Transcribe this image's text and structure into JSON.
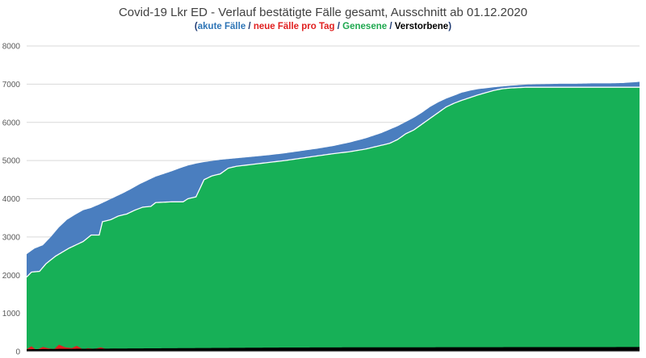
{
  "chart_data": {
    "type": "area",
    "title": "Covid-19 Lkr ED - Verlauf bestätigte Fälle gesamt, Ausschnitt ab 01.12.2020",
    "subtitle": {
      "open": "(",
      "close": ")",
      "separator": " / ",
      "parts": [
        {
          "text": "akute Fälle",
          "color": "#2e75b6"
        },
        {
          "text": "neue Fälle pro Tag",
          "color": "#e02020"
        },
        {
          "text": "Genesene",
          "color": "#1fa84f"
        },
        {
          "text": "Verstorbene",
          "color": "#000000"
        }
      ]
    },
    "ylim": [
      0,
      8000
    ],
    "yticks": [
      0,
      1000,
      2000,
      3000,
      4000,
      5000,
      6000,
      7000,
      8000
    ],
    "grid": true,
    "legend": "subtitle",
    "series_colors": {
      "akute_faelle": "#4a7ebf",
      "genesene": "#17b057",
      "verstorbene": "#000000",
      "neue_faelle": "#e02020"
    },
    "x_index_range": [
      0,
      380
    ],
    "total_cases": [
      [
        0,
        2550
      ],
      [
        5,
        2700
      ],
      [
        10,
        2780
      ],
      [
        15,
        3000
      ],
      [
        20,
        3250
      ],
      [
        25,
        3450
      ],
      [
        30,
        3580
      ],
      [
        35,
        3700
      ],
      [
        40,
        3760
      ],
      [
        45,
        3850
      ],
      [
        50,
        3950
      ],
      [
        55,
        4050
      ],
      [
        60,
        4150
      ],
      [
        65,
        4260
      ],
      [
        70,
        4380
      ],
      [
        75,
        4480
      ],
      [
        80,
        4580
      ],
      [
        85,
        4650
      ],
      [
        90,
        4720
      ],
      [
        95,
        4800
      ],
      [
        100,
        4870
      ],
      [
        105,
        4920
      ],
      [
        110,
        4960
      ],
      [
        115,
        4990
      ],
      [
        120,
        5020
      ],
      [
        130,
        5060
      ],
      [
        140,
        5100
      ],
      [
        150,
        5140
      ],
      [
        160,
        5190
      ],
      [
        170,
        5250
      ],
      [
        180,
        5310
      ],
      [
        190,
        5380
      ],
      [
        200,
        5470
      ],
      [
        210,
        5580
      ],
      [
        220,
        5720
      ],
      [
        230,
        5900
      ],
      [
        240,
        6120
      ],
      [
        245,
        6250
      ],
      [
        250,
        6400
      ],
      [
        255,
        6520
      ],
      [
        260,
        6620
      ],
      [
        265,
        6700
      ],
      [
        270,
        6780
      ],
      [
        275,
        6830
      ],
      [
        280,
        6870
      ],
      [
        290,
        6920
      ],
      [
        300,
        6960
      ],
      [
        310,
        6990
      ],
      [
        320,
        7000
      ],
      [
        330,
        7010
      ],
      [
        340,
        7010
      ],
      [
        350,
        7020
      ],
      [
        360,
        7020
      ],
      [
        370,
        7030
      ],
      [
        380,
        7060
      ]
    ],
    "genesene": [
      [
        0,
        1950
      ],
      [
        3,
        2080
      ],
      [
        8,
        2100
      ],
      [
        12,
        2300
      ],
      [
        18,
        2500
      ],
      [
        22,
        2600
      ],
      [
        26,
        2700
      ],
      [
        30,
        2780
      ],
      [
        35,
        2880
      ],
      [
        40,
        3050
      ],
      [
        45,
        3050
      ],
      [
        47,
        3400
      ],
      [
        52,
        3450
      ],
      [
        57,
        3550
      ],
      [
        62,
        3600
      ],
      [
        67,
        3700
      ],
      [
        72,
        3780
      ],
      [
        77,
        3800
      ],
      [
        80,
        3900
      ],
      [
        90,
        3920
      ],
      [
        97,
        3920
      ],
      [
        100,
        4000
      ],
      [
        105,
        4050
      ],
      [
        110,
        4500
      ],
      [
        115,
        4600
      ],
      [
        120,
        4650
      ],
      [
        125,
        4800
      ],
      [
        130,
        4850
      ],
      [
        140,
        4900
      ],
      [
        150,
        4950
      ],
      [
        160,
        5000
      ],
      [
        170,
        5060
      ],
      [
        180,
        5120
      ],
      [
        190,
        5180
      ],
      [
        200,
        5230
      ],
      [
        210,
        5300
      ],
      [
        220,
        5400
      ],
      [
        225,
        5450
      ],
      [
        230,
        5550
      ],
      [
        235,
        5700
      ],
      [
        240,
        5800
      ],
      [
        245,
        5950
      ],
      [
        250,
        6100
      ],
      [
        255,
        6250
      ],
      [
        260,
        6400
      ],
      [
        265,
        6500
      ],
      [
        270,
        6580
      ],
      [
        275,
        6650
      ],
      [
        280,
        6720
      ],
      [
        285,
        6780
      ],
      [
        290,
        6840
      ],
      [
        295,
        6880
      ],
      [
        300,
        6900
      ],
      [
        310,
        6920
      ],
      [
        380,
        6920
      ]
    ],
    "verstorbene": [
      [
        0,
        60
      ],
      [
        20,
        70
      ],
      [
        40,
        75
      ],
      [
        60,
        80
      ],
      [
        80,
        85
      ],
      [
        100,
        90
      ],
      [
        120,
        95
      ],
      [
        140,
        100
      ],
      [
        160,
        105
      ],
      [
        200,
        110
      ],
      [
        250,
        112
      ],
      [
        300,
        115
      ],
      [
        380,
        118
      ]
    ],
    "neue_faelle": [
      [
        0,
        60
      ],
      [
        3,
        140
      ],
      [
        6,
        40
      ],
      [
        10,
        120
      ],
      [
        13,
        90
      ],
      [
        17,
        60
      ],
      [
        20,
        180
      ],
      [
        24,
        110
      ],
      [
        28,
        90
      ],
      [
        31,
        150
      ],
      [
        35,
        60
      ],
      [
        38,
        90
      ],
      [
        42,
        70
      ],
      [
        46,
        110
      ],
      [
        50,
        60
      ],
      [
        55,
        80
      ],
      [
        60,
        50
      ],
      [
        70,
        60
      ],
      [
        80,
        40
      ],
      [
        100,
        30
      ],
      [
        140,
        20
      ],
      [
        200,
        15
      ],
      [
        280,
        10
      ],
      [
        380,
        8
      ]
    ]
  }
}
